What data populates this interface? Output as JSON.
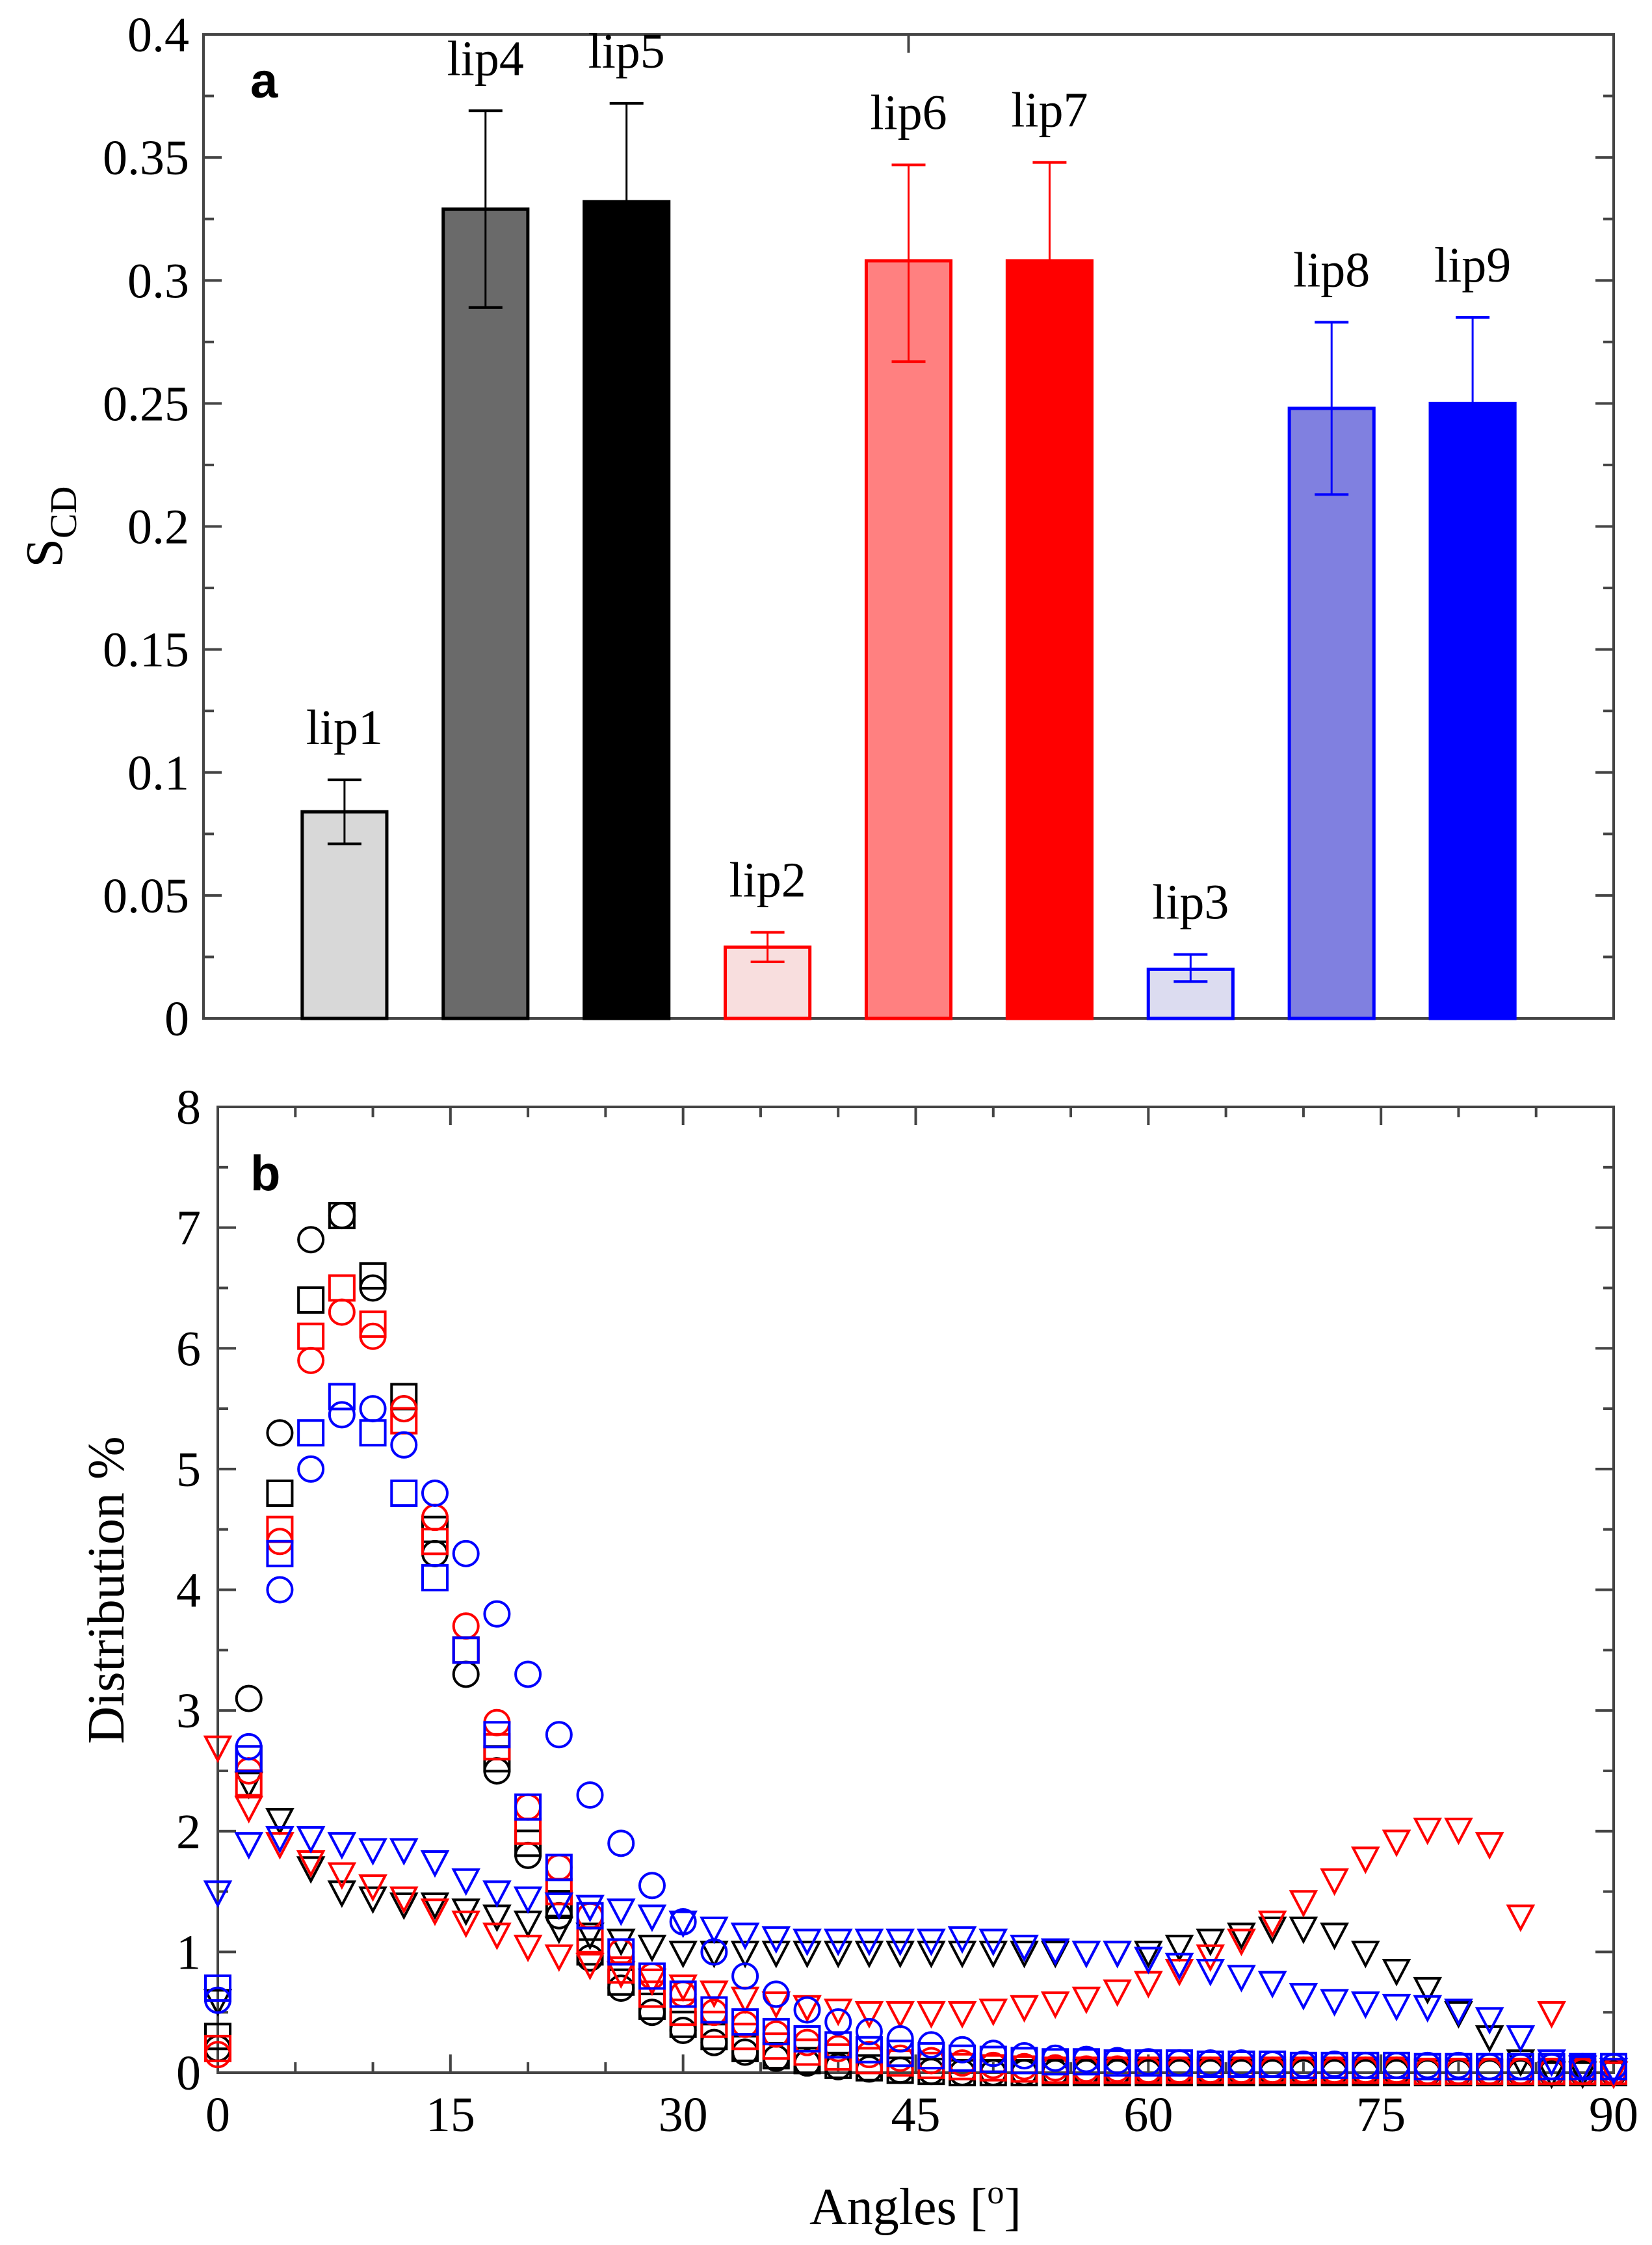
{
  "chart_data": [
    {
      "type": "bar",
      "panel_label": "a",
      "ylabel_main": "S",
      "ylabel_sub": "CD",
      "ylim": [
        0,
        0.4
      ],
      "xlim": [
        0,
        10
      ],
      "yticks": [
        "0",
        "0.05",
        "0.1",
        "0.15",
        "0.2",
        "0.25",
        "0.3",
        "0.35",
        "0.4"
      ],
      "bars": [
        {
          "label": "lip1",
          "x": 1,
          "value": 0.084,
          "err_low": 0.071,
          "err_high": 0.097,
          "fill": "#d8d8d8",
          "stroke": "#000000"
        },
        {
          "label": "lip4",
          "x": 2,
          "value": 0.329,
          "err_low": 0.289,
          "err_high": 0.369,
          "fill": "#6a6a6a",
          "stroke": "#000000"
        },
        {
          "label": "lip5",
          "x": 3,
          "value": 0.332,
          "err_low": 0.292,
          "err_high": 0.372,
          "fill": "#000000",
          "stroke": "#000000"
        },
        {
          "label": "lip2",
          "x": 4,
          "value": 0.029,
          "err_low": 0.023,
          "err_high": 0.035,
          "fill": "#f8dede",
          "stroke": "#ff0000"
        },
        {
          "label": "lip6",
          "x": 5,
          "value": 0.308,
          "err_low": 0.267,
          "err_high": 0.347,
          "fill": "#ff8080",
          "stroke": "#ff0000"
        },
        {
          "label": "lip7",
          "x": 6,
          "value": 0.308,
          "err_low": 0.268,
          "err_high": 0.348,
          "fill": "#ff0000",
          "stroke": "#ff0000"
        },
        {
          "label": "lip3",
          "x": 7,
          "value": 0.02,
          "err_low": 0.015,
          "err_high": 0.026,
          "fill": "#dcdcf0",
          "stroke": "#0000ff"
        },
        {
          "label": "lip8",
          "x": 8,
          "value": 0.248,
          "err_low": 0.213,
          "err_high": 0.283,
          "fill": "#8080e0",
          "stroke": "#0000ff"
        },
        {
          "label": "lip9",
          "x": 9,
          "value": 0.25,
          "err_low": 0.215,
          "err_high": 0.285,
          "fill": "#0000ff",
          "stroke": "#0000ff"
        }
      ]
    },
    {
      "type": "scatter",
      "panel_label": "b",
      "ylabel": "Distribution %",
      "xlabel_main": "Angles [",
      "xlabel_sup": "o",
      "xlabel_end": "]",
      "xlim": [
        0,
        90
      ],
      "ylim": [
        0,
        8
      ],
      "xticks": [
        "0",
        "15",
        "30",
        "45",
        "60",
        "75",
        "90"
      ],
      "yticks": [
        "0",
        "1",
        "2",
        "3",
        "4",
        "5",
        "6",
        "7",
        "8"
      ],
      "x_step": 2,
      "series": [
        {
          "color": "#000000",
          "marker": "circle",
          "y": [
            0.2,
            3.1,
            5.3,
            6.9,
            7.1,
            6.5,
            5.5,
            4.3,
            3.3,
            2.5,
            1.8,
            1.3,
            0.95,
            0.7,
            0.5,
            0.35,
            0.25,
            0.17,
            0.12,
            0.08,
            0.05,
            0.03,
            0.02,
            0.01,
            0,
            0,
            0,
            0,
            0,
            0,
            0,
            0,
            0,
            0,
            0,
            0,
            0,
            0,
            0,
            0,
            0,
            0,
            0,
            0,
            0,
            0
          ]
        },
        {
          "color": "#000000",
          "marker": "square",
          "y": [
            0.3,
            2.6,
            4.8,
            6.4,
            7.1,
            6.6,
            5.6,
            4.5,
            3.5,
            2.6,
            1.9,
            1.4,
            1.0,
            0.75,
            0.55,
            0.4,
            0.3,
            0.2,
            0.14,
            0.1,
            0.06,
            0.04,
            0.02,
            0.01,
            0,
            0,
            0,
            0,
            0,
            0,
            0,
            0,
            0,
            0,
            0,
            0,
            0,
            0,
            0,
            0,
            0,
            0,
            0,
            0,
            0,
            0
          ]
        },
        {
          "color": "#000000",
          "marker": "triangle-down",
          "y": [
            0.6,
            2.4,
            2.1,
            1.7,
            1.5,
            1.45,
            1.4,
            1.4,
            1.35,
            1.3,
            1.25,
            1.2,
            1.15,
            1.1,
            1.05,
            1.0,
            1.0,
            1.0,
            1.0,
            1.0,
            1.0,
            1.0,
            1.0,
            1.0,
            1.0,
            1.0,
            1.0,
            1.0,
            1.0,
            1.0,
            1.0,
            1.05,
            1.1,
            1.15,
            1.2,
            1.2,
            1.15,
            1.0,
            0.85,
            0.7,
            0.5,
            0.3,
            0.1,
            0,
            0,
            0
          ]
        },
        {
          "color": "#ff0000",
          "marker": "circle",
          "y": [
            0.15,
            2.5,
            4.4,
            5.9,
            6.3,
            6.1,
            5.5,
            4.6,
            3.7,
            2.9,
            2.2,
            1.7,
            1.3,
            1.0,
            0.8,
            0.65,
            0.5,
            0.4,
            0.32,
            0.25,
            0.2,
            0.15,
            0.12,
            0.1,
            0.08,
            0.06,
            0.05,
            0.04,
            0.03,
            0.03,
            0.02,
            0.02,
            0.02,
            0.02,
            0.02,
            0.02,
            0.02,
            0.02,
            0.02,
            0.01,
            0.01,
            0.01,
            0.01,
            0.01,
            0.01,
            0.01
          ]
        },
        {
          "color": "#ff0000",
          "marker": "square",
          "y": [
            0.2,
            2.4,
            4.5,
            6.1,
            6.5,
            6.2,
            5.4,
            4.4,
            3.5,
            2.7,
            2.0,
            1.5,
            1.1,
            0.85,
            0.65,
            0.5,
            0.4,
            0.3,
            0.22,
            0.17,
            0.13,
            0.1,
            0.08,
            0.06,
            0.05,
            0.04,
            0.03,
            0.02,
            0.02,
            0.02,
            0.02,
            0.02,
            0.02,
            0.02,
            0.02,
            0.02,
            0.02,
            0.02,
            0.02,
            0.01,
            0.01,
            0.01,
            0.01,
            0.01,
            0.01,
            0.01
          ]
        },
        {
          "color": "#ff0000",
          "marker": "triangle-down",
          "y": [
            2.7,
            2.2,
            1.9,
            1.75,
            1.65,
            1.55,
            1.45,
            1.35,
            1.25,
            1.15,
            1.05,
            0.97,
            0.9,
            0.83,
            0.77,
            0.72,
            0.67,
            0.62,
            0.58,
            0.55,
            0.52,
            0.5,
            0.5,
            0.5,
            0.5,
            0.52,
            0.55,
            0.58,
            0.62,
            0.68,
            0.75,
            0.85,
            0.97,
            1.1,
            1.25,
            1.42,
            1.6,
            1.78,
            1.92,
            2.02,
            2.02,
            1.9,
            1.3,
            0.5,
            0.05,
            0
          ]
        },
        {
          "color": "#0000ff",
          "marker": "circle",
          "y": [
            0.6,
            2.7,
            4.0,
            5.0,
            5.45,
            5.5,
            5.2,
            4.8,
            4.3,
            3.8,
            3.3,
            2.8,
            2.3,
            1.9,
            1.55,
            1.25,
            1.0,
            0.8,
            0.65,
            0.52,
            0.42,
            0.34,
            0.28,
            0.23,
            0.19,
            0.16,
            0.14,
            0.12,
            0.11,
            0.1,
            0.09,
            0.08,
            0.08,
            0.08,
            0.07,
            0.07,
            0.07,
            0.06,
            0.06,
            0.06,
            0.06,
            0.05,
            0.05,
            0.05,
            0.05,
            0.05
          ]
        },
        {
          "color": "#0000ff",
          "marker": "square",
          "y": [
            0.7,
            2.6,
            4.3,
            5.3,
            5.6,
            5.3,
            4.8,
            4.1,
            3.5,
            2.8,
            2.2,
            1.7,
            1.3,
            1.0,
            0.8,
            0.65,
            0.52,
            0.42,
            0.34,
            0.28,
            0.23,
            0.19,
            0.16,
            0.14,
            0.12,
            0.11,
            0.1,
            0.09,
            0.09,
            0.08,
            0.08,
            0.08,
            0.07,
            0.07,
            0.07,
            0.06,
            0.06,
            0.06,
            0.06,
            0.05,
            0.05,
            0.05,
            0.05,
            0.05,
            0.05,
            0.05
          ]
        },
        {
          "color": "#0000ff",
          "marker": "triangle-down",
          "y": [
            1.5,
            1.9,
            1.95,
            1.95,
            1.9,
            1.85,
            1.85,
            1.75,
            1.6,
            1.5,
            1.45,
            1.4,
            1.38,
            1.35,
            1.3,
            1.25,
            1.2,
            1.15,
            1.12,
            1.1,
            1.1,
            1.1,
            1.1,
            1.1,
            1.12,
            1.1,
            1.05,
            1.02,
            1.0,
            1.0,
            0.95,
            0.9,
            0.85,
            0.8,
            0.75,
            0.65,
            0.6,
            0.58,
            0.56,
            0.55,
            0.52,
            0.45,
            0.3,
            0.1,
            0.05,
            0.03
          ]
        }
      ]
    }
  ]
}
